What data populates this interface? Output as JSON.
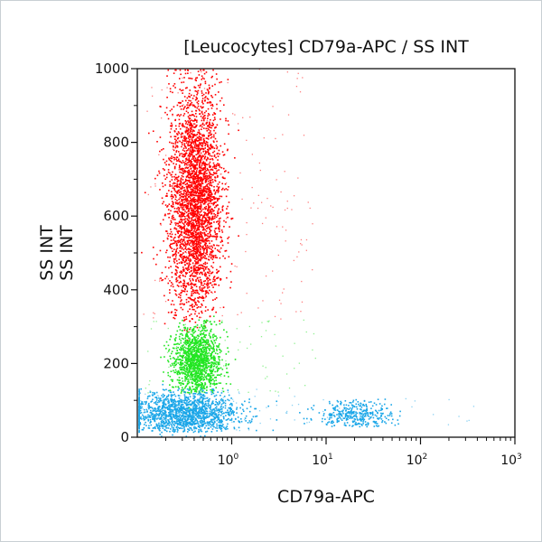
{
  "chart_data": {
    "type": "scatter",
    "title": "[Leucocytes] CD79a-APC / SS INT",
    "xlabel": "CD79a-APC",
    "ylabel_lines": [
      "SS INT",
      "SS INT"
    ],
    "x_scale": "log",
    "xlim": [
      0.1,
      1000
    ],
    "ylim": [
      0,
      1000
    ],
    "x_ticks": [
      {
        "base": "10",
        "exp": "0",
        "value": 1
      },
      {
        "base": "10",
        "exp": "1",
        "value": 10
      },
      {
        "base": "10",
        "exp": "2",
        "value": 100
      },
      {
        "base": "10",
        "exp": "3",
        "value": 1000
      }
    ],
    "y_ticks": [
      0,
      200,
      400,
      600,
      800,
      1000
    ],
    "grid": false,
    "populations": [
      {
        "color": "#ff0000",
        "x_center": 0.4,
        "x_spread_decades": 0.14,
        "y_min": 320,
        "y_max": 1000,
        "y_center": 640,
        "count": 3200
      },
      {
        "color": "#22e622",
        "x_center": 0.42,
        "x_spread_decades": 0.13,
        "y_min": 120,
        "y_max": 320,
        "y_center": 210,
        "count": 1300
      },
      {
        "color": "#1aa6e8",
        "x_center": 0.3,
        "x_spread_decades": 0.3,
        "y_min": 15,
        "y_max": 135,
        "y_center": 65,
        "count": 1500
      },
      {
        "color": "#1aa6e8",
        "x_center": 20,
        "x_spread_decades": 0.2,
        "y_min": 30,
        "y_max": 110,
        "y_center": 65,
        "count": 350
      }
    ]
  }
}
